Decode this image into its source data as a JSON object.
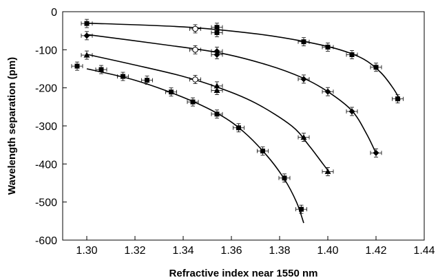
{
  "chart_data": {
    "type": "scatter",
    "title": "",
    "xlabel": "Refractive index near 1550 nm",
    "ylabel": "Wavelength separation (pm)",
    "xlim": [
      1.29,
      1.44
    ],
    "ylim": [
      -600,
      0
    ],
    "xticks": [
      1.3,
      1.32,
      1.34,
      1.36,
      1.38,
      1.4,
      1.42,
      1.44
    ],
    "yticks": [
      0,
      -100,
      -200,
      -300,
      -400,
      -500,
      -600
    ],
    "grid": false,
    "legend": "none",
    "series": [
      {
        "marker": "square",
        "points": [
          {
            "x": 1.296,
            "y": -143
          },
          {
            "x": 1.306,
            "y": -152
          },
          {
            "x": 1.315,
            "y": -170
          },
          {
            "x": 1.325,
            "y": -180
          },
          {
            "x": 1.335,
            "y": -211
          },
          {
            "x": 1.344,
            "y": -237
          },
          {
            "x": 1.354,
            "y": -269
          },
          {
            "x": 1.363,
            "y": -305
          },
          {
            "x": 1.373,
            "y": -366
          },
          {
            "x": 1.382,
            "y": -437
          },
          {
            "x": 1.389,
            "y": -519
          }
        ],
        "curve": [
          {
            "x": 1.3,
            "y": -150
          },
          {
            "x": 1.32,
            "y": -180
          },
          {
            "x": 1.34,
            "y": -225
          },
          {
            "x": 1.355,
            "y": -270
          },
          {
            "x": 1.365,
            "y": -315
          },
          {
            "x": 1.375,
            "y": -380
          },
          {
            "x": 1.382,
            "y": -440
          },
          {
            "x": 1.387,
            "y": -500
          },
          {
            "x": 1.39,
            "y": -555
          }
        ]
      },
      {
        "marker": "triangle",
        "points": [
          {
            "x": 1.3,
            "y": -114
          },
          {
            "x": 1.354,
            "y": -195
          },
          {
            "x": 1.354,
            "y": -207
          },
          {
            "x": 1.39,
            "y": -330
          },
          {
            "x": 1.4,
            "y": -420
          }
        ],
        "curve": [
          {
            "x": 1.3,
            "y": -112
          },
          {
            "x": 1.32,
            "y": -140
          },
          {
            "x": 1.34,
            "y": -170
          },
          {
            "x": 1.355,
            "y": -200
          },
          {
            "x": 1.37,
            "y": -240
          },
          {
            "x": 1.385,
            "y": -300
          },
          {
            "x": 1.392,
            "y": -350
          },
          {
            "x": 1.398,
            "y": -400
          },
          {
            "x": 1.401,
            "y": -425
          }
        ]
      },
      {
        "marker": "diamond",
        "points": [
          {
            "x": 1.3,
            "y": -63
          },
          {
            "x": 1.354,
            "y": -104
          },
          {
            "x": 1.354,
            "y": -113
          },
          {
            "x": 1.39,
            "y": -177
          },
          {
            "x": 1.4,
            "y": -210
          },
          {
            "x": 1.41,
            "y": -262
          },
          {
            "x": 1.42,
            "y": -371
          }
        ],
        "curve": [
          {
            "x": 1.3,
            "y": -60
          },
          {
            "x": 1.33,
            "y": -85
          },
          {
            "x": 1.355,
            "y": -108
          },
          {
            "x": 1.375,
            "y": -140
          },
          {
            "x": 1.39,
            "y": -175
          },
          {
            "x": 1.4,
            "y": -210
          },
          {
            "x": 1.41,
            "y": -260
          },
          {
            "x": 1.416,
            "y": -320
          },
          {
            "x": 1.42,
            "y": -372
          }
        ]
      },
      {
        "marker": "square",
        "points": [
          {
            "x": 1.3,
            "y": -31
          },
          {
            "x": 1.354,
            "y": -41
          },
          {
            "x": 1.354,
            "y": -55
          },
          {
            "x": 1.39,
            "y": -79
          },
          {
            "x": 1.4,
            "y": -93
          },
          {
            "x": 1.41,
            "y": -113
          },
          {
            "x": 1.42,
            "y": -146
          },
          {
            "x": 1.429,
            "y": -229
          }
        ],
        "curve": [
          {
            "x": 1.3,
            "y": -30
          },
          {
            "x": 1.34,
            "y": -40
          },
          {
            "x": 1.37,
            "y": -58
          },
          {
            "x": 1.39,
            "y": -78
          },
          {
            "x": 1.405,
            "y": -100
          },
          {
            "x": 1.415,
            "y": -125
          },
          {
            "x": 1.422,
            "y": -160
          },
          {
            "x": 1.427,
            "y": -200
          },
          {
            "x": 1.43,
            "y": -232
          }
        ]
      },
      {
        "marker": "circle-open",
        "points": [
          {
            "x": 1.345,
            "y": -45
          },
          {
            "x": 1.345,
            "y": -100
          },
          {
            "x": 1.345,
            "y": -178
          }
        ],
        "curve": []
      }
    ]
  }
}
